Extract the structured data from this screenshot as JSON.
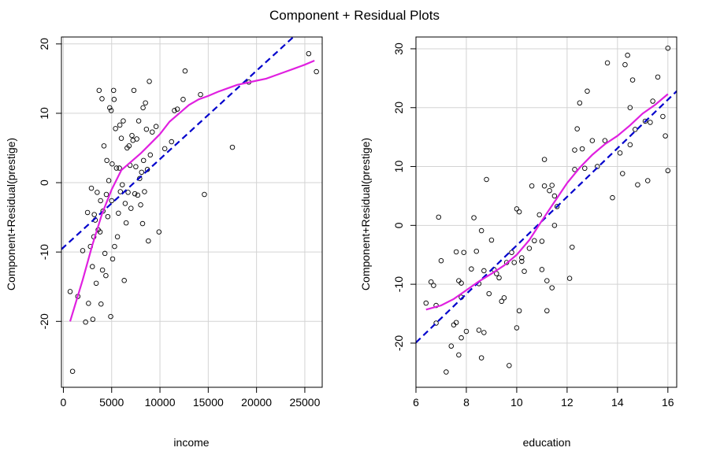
{
  "figure": {
    "title": "Component + Residual Plots",
    "colors": {
      "points": "#000000",
      "fit_line": "#0000cc",
      "smooth_line": "#e020e0",
      "grid": "#d3d3d3"
    }
  },
  "chart_data": [
    {
      "type": "scatter",
      "xlabel": "income",
      "ylabel": "Component+Residual(prestige)",
      "xlim": [
        -200,
        26800
      ],
      "ylim": [
        -29.5,
        21
      ],
      "xticks": [
        0,
        5000,
        10000,
        15000,
        20000,
        25000
      ],
      "xtick_labels": [
        "0",
        "5000",
        "10000",
        "15000",
        "20000",
        "25000"
      ],
      "yticks": [
        -20,
        -10,
        0,
        10,
        20
      ],
      "ytick_labels": [
        "-20",
        "-10",
        "0",
        "10",
        "20"
      ],
      "grid": true,
      "points": [
        [
          700,
          -15.7
        ],
        [
          950,
          -27.2
        ],
        [
          1500,
          -16.4
        ],
        [
          2000,
          -9.8
        ],
        [
          2300,
          -20.1
        ],
        [
          2500,
          -4.3
        ],
        [
          2600,
          -17.4
        ],
        [
          2800,
          -9.2
        ],
        [
          2900,
          -0.8
        ],
        [
          3000,
          -12.1
        ],
        [
          3050,
          -19.7
        ],
        [
          3150,
          -7.8
        ],
        [
          3200,
          -4.6
        ],
        [
          3300,
          -5.4
        ],
        [
          3400,
          -14.5
        ],
        [
          3500,
          -1.4
        ],
        [
          3600,
          -6.8
        ],
        [
          3700,
          13.3
        ],
        [
          3800,
          -7.1
        ],
        [
          3850,
          -2.6
        ],
        [
          3900,
          -17.5
        ],
        [
          4000,
          12.1
        ],
        [
          4050,
          -12.6
        ],
        [
          4100,
          -4.1
        ],
        [
          4200,
          5.3
        ],
        [
          4300,
          -10.2
        ],
        [
          4400,
          -13.4
        ],
        [
          4450,
          -1.7
        ],
        [
          4500,
          3.2
        ],
        [
          4600,
          -4.9
        ],
        [
          4700,
          0.3
        ],
        [
          4800,
          10.8
        ],
        [
          4900,
          -19.3
        ],
        [
          4950,
          10.4
        ],
        [
          5000,
          -2.6
        ],
        [
          5050,
          2.7
        ],
        [
          5100,
          -11.0
        ],
        [
          5200,
          13.3
        ],
        [
          5250,
          12.0
        ],
        [
          5300,
          -9.2
        ],
        [
          5400,
          7.8
        ],
        [
          5500,
          2.1
        ],
        [
          5600,
          -7.8
        ],
        [
          5700,
          -4.4
        ],
        [
          5800,
          2.1
        ],
        [
          5850,
          8.3
        ],
        [
          5900,
          -1.3
        ],
        [
          6000,
          6.4
        ],
        [
          6100,
          -0.3
        ],
        [
          6200,
          8.9
        ],
        [
          6300,
          -14.1
        ],
        [
          6400,
          -3.0
        ],
        [
          6500,
          -5.8
        ],
        [
          6600,
          5.0
        ],
        [
          6700,
          -1.4
        ],
        [
          6800,
          5.3
        ],
        [
          6900,
          2.5
        ],
        [
          7000,
          -3.7
        ],
        [
          7100,
          6.8
        ],
        [
          7200,
          6.1
        ],
        [
          7300,
          13.3
        ],
        [
          7400,
          -1.6
        ],
        [
          7500,
          2.3
        ],
        [
          7600,
          6.3
        ],
        [
          7700,
          -1.8
        ],
        [
          7800,
          8.9
        ],
        [
          7900,
          0.6
        ],
        [
          8000,
          -3.2
        ],
        [
          8100,
          1.5
        ],
        [
          8200,
          -5.9
        ],
        [
          8250,
          10.8
        ],
        [
          8300,
          3.2
        ],
        [
          8400,
          -1.3
        ],
        [
          8500,
          11.5
        ],
        [
          8600,
          7.7
        ],
        [
          8700,
          1.9
        ],
        [
          8800,
          -8.4
        ],
        [
          8900,
          14.6
        ],
        [
          9000,
          4.0
        ],
        [
          9200,
          7.3
        ],
        [
          9600,
          8.1
        ],
        [
          9900,
          -7.1
        ],
        [
          10500,
          4.9
        ],
        [
          11200,
          5.9
        ],
        [
          11500,
          10.4
        ],
        [
          11800,
          10.6
        ],
        [
          12400,
          12.0
        ],
        [
          12600,
          16.1
        ],
        [
          14200,
          12.7
        ],
        [
          14600,
          -1.7
        ],
        [
          17500,
          5.1
        ],
        [
          26200,
          16.0
        ],
        [
          25400,
          18.6
        ],
        [
          19200,
          14.5
        ]
      ],
      "fit_line": [
        [
          -200,
          -9.6
        ],
        [
          26800,
          24.8
        ]
      ],
      "smooth_line": [
        [
          700,
          -20.0
        ],
        [
          2000,
          -14.0
        ],
        [
          3000,
          -9.0
        ],
        [
          4000,
          -4.5
        ],
        [
          5000,
          -1.0
        ],
        [
          6000,
          1.8
        ],
        [
          7000,
          3.0
        ],
        [
          8000,
          4.2
        ],
        [
          9000,
          5.6
        ],
        [
          10000,
          7.0
        ],
        [
          11000,
          8.8
        ],
        [
          12000,
          10.0
        ],
        [
          13000,
          11.2
        ],
        [
          14000,
          12.0
        ],
        [
          15000,
          12.5
        ],
        [
          16000,
          13.1
        ],
        [
          17000,
          13.6
        ],
        [
          18000,
          14.1
        ],
        [
          19000,
          14.4
        ],
        [
          20000,
          14.7
        ],
        [
          21000,
          15.0
        ],
        [
          22000,
          15.5
        ],
        [
          23000,
          16.0
        ],
        [
          24000,
          16.5
        ],
        [
          25000,
          17.0
        ],
        [
          26000,
          17.6
        ]
      ]
    },
    {
      "type": "scatter",
      "xlabel": "education",
      "ylabel": "Component+Residual(prestige)",
      "xlim": [
        6.0,
        16.35
      ],
      "ylim": [
        -27.5,
        32
      ],
      "xticks": [
        6,
        8,
        10,
        12,
        14,
        16
      ],
      "xtick_labels": [
        "6",
        "8",
        "10",
        "12",
        "14",
        "16"
      ],
      "yticks": [
        -20,
        -10,
        0,
        10,
        20,
        30
      ],
      "ytick_labels": [
        "-20",
        "-10",
        "0",
        "10",
        "20",
        "30"
      ],
      "grid": true,
      "points": [
        [
          6.4,
          -13.2
        ],
        [
          6.6,
          -9.6
        ],
        [
          6.7,
          -10.2
        ],
        [
          6.8,
          -16.6
        ],
        [
          6.8,
          -13.6
        ],
        [
          6.9,
          1.4
        ],
        [
          7.0,
          -6.0
        ],
        [
          7.2,
          -24.9
        ],
        [
          7.4,
          -20.5
        ],
        [
          7.5,
          -16.9
        ],
        [
          7.6,
          -16.5
        ],
        [
          7.6,
          -4.5
        ],
        [
          7.7,
          -9.4
        ],
        [
          7.7,
          -22.0
        ],
        [
          7.8,
          -19.1
        ],
        [
          7.8,
          -12.2
        ],
        [
          7.8,
          -9.8
        ],
        [
          7.9,
          -4.6
        ],
        [
          8.0,
          -18.0
        ],
        [
          8.2,
          -7.4
        ],
        [
          8.3,
          1.3
        ],
        [
          8.4,
          -4.4
        ],
        [
          8.5,
          -9.9
        ],
        [
          8.5,
          -17.8
        ],
        [
          8.6,
          -22.5
        ],
        [
          8.6,
          -0.9
        ],
        [
          8.7,
          -18.2
        ],
        [
          8.7,
          -7.7
        ],
        [
          8.8,
          7.8
        ],
        [
          8.9,
          -11.6
        ],
        [
          9.0,
          -2.5
        ],
        [
          9.1,
          -7.5
        ],
        [
          9.2,
          -8.2
        ],
        [
          9.3,
          -8.9
        ],
        [
          9.4,
          -12.9
        ],
        [
          9.5,
          -12.3
        ],
        [
          9.6,
          -6.3
        ],
        [
          9.7,
          -23.8
        ],
        [
          9.8,
          -4.6
        ],
        [
          9.9,
          -6.3
        ],
        [
          10.0,
          -17.4
        ],
        [
          10.0,
          2.8
        ],
        [
          10.1,
          -14.5
        ],
        [
          10.1,
          2.3
        ],
        [
          10.2,
          -5.5
        ],
        [
          10.2,
          -6.1
        ],
        [
          10.3,
          -7.8
        ],
        [
          10.5,
          -3.9
        ],
        [
          10.6,
          6.7
        ],
        [
          10.7,
          -2.6
        ],
        [
          10.9,
          1.8
        ],
        [
          11.0,
          -7.5
        ],
        [
          11.0,
          -2.7
        ],
        [
          11.1,
          11.2
        ],
        [
          11.1,
          6.7
        ],
        [
          11.2,
          -9.4
        ],
        [
          11.2,
          -14.5
        ],
        [
          11.3,
          5.9
        ],
        [
          11.4,
          6.8
        ],
        [
          11.4,
          -10.6
        ],
        [
          11.5,
          0.0
        ],
        [
          11.5,
          5.0
        ],
        [
          11.6,
          3.2
        ],
        [
          12.1,
          -9.0
        ],
        [
          12.2,
          -3.7
        ],
        [
          12.3,
          12.8
        ],
        [
          12.3,
          9.5
        ],
        [
          12.4,
          16.4
        ],
        [
          12.5,
          20.8
        ],
        [
          12.6,
          13.0
        ],
        [
          12.7,
          9.7
        ],
        [
          12.8,
          22.8
        ],
        [
          13.0,
          14.4
        ],
        [
          13.2,
          10.0
        ],
        [
          13.5,
          14.4
        ],
        [
          13.6,
          27.6
        ],
        [
          13.8,
          4.7
        ],
        [
          14.1,
          12.3
        ],
        [
          14.2,
          8.8
        ],
        [
          14.3,
          27.3
        ],
        [
          14.4,
          28.9
        ],
        [
          14.5,
          20.0
        ],
        [
          14.5,
          13.7
        ],
        [
          14.6,
          24.7
        ],
        [
          14.7,
          16.3
        ],
        [
          14.8,
          6.9
        ],
        [
          15.1,
          17.7
        ],
        [
          15.2,
          7.6
        ],
        [
          15.3,
          17.5
        ],
        [
          15.4,
          21.1
        ],
        [
          15.6,
          25.2
        ],
        [
          15.8,
          18.5
        ],
        [
          15.9,
          15.2
        ],
        [
          16.0,
          9.3
        ],
        [
          16.0,
          30.1
        ]
      ],
      "fit_line": [
        [
          6.0,
          -19.9
        ],
        [
          16.35,
          22.8
        ]
      ],
      "smooth_line": [
        [
          6.4,
          -14.3
        ],
        [
          7.0,
          -13.6
        ],
        [
          7.5,
          -12.5
        ],
        [
          8.0,
          -11.0
        ],
        [
          8.5,
          -9.5
        ],
        [
          9.0,
          -8.2
        ],
        [
          9.5,
          -6.8
        ],
        [
          10.0,
          -5.0
        ],
        [
          10.5,
          -2.5
        ],
        [
          11.0,
          0.8
        ],
        [
          11.5,
          4.0
        ],
        [
          12.0,
          7.2
        ],
        [
          12.5,
          9.8
        ],
        [
          13.0,
          12.0
        ],
        [
          13.5,
          13.8
        ],
        [
          14.0,
          15.2
        ],
        [
          14.5,
          17.0
        ],
        [
          15.0,
          19.0
        ],
        [
          15.5,
          20.5
        ],
        [
          16.0,
          22.3
        ]
      ]
    }
  ]
}
